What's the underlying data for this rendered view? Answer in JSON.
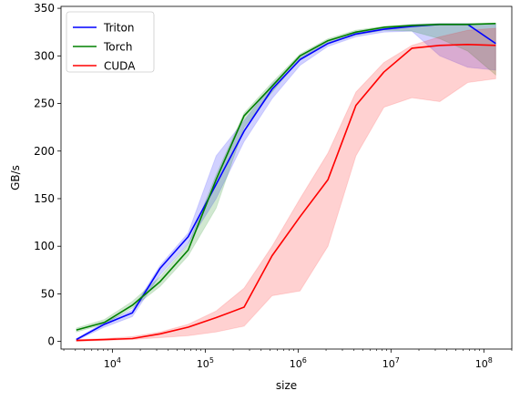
{
  "chart_data": {
    "type": "line",
    "title": "",
    "xlabel": "size",
    "ylabel": "GB/s",
    "xscale": "log",
    "xlim": [
      2800,
      200000000
    ],
    "ylim": [
      -8,
      352
    ],
    "xticks": [
      {
        "value": 10000,
        "base": "10",
        "exp": "4"
      },
      {
        "value": 100000,
        "base": "10",
        "exp": "5"
      },
      {
        "value": 1000000,
        "base": "10",
        "exp": "6"
      },
      {
        "value": 10000000,
        "base": "10",
        "exp": "7"
      },
      {
        "value": 100000000,
        "base": "10",
        "exp": "8"
      }
    ],
    "yticks": [
      "0",
      "50",
      "100",
      "150",
      "200",
      "250",
      "300",
      "350"
    ],
    "legend_position": "top-left",
    "x": [
      4096,
      8192,
      16384,
      32768,
      65536,
      131072,
      262144,
      524288,
      1048576,
      2097152,
      4194304,
      8388608,
      16777216,
      33554432,
      67108864,
      134217728
    ],
    "series": [
      {
        "name": "Triton",
        "color": "#0000ff",
        "values": [
          2,
          18,
          30,
          77,
          110,
          165,
          221,
          265,
          296,
          313,
          323,
          328,
          331,
          333,
          333,
          313
        ],
        "lower": [
          1,
          15,
          26,
          70,
          103,
          150,
          210,
          255,
          290,
          310,
          320,
          325,
          326,
          300,
          288,
          285
        ],
        "upper": [
          3,
          20,
          33,
          80,
          114,
          195,
          232,
          270,
          298,
          316,
          325,
          330,
          333,
          334,
          334,
          333
        ]
      },
      {
        "name": "Torch",
        "color": "#008000",
        "values": [
          12,
          20,
          38,
          63,
          96,
          170,
          237,
          268,
          300,
          316,
          325,
          330,
          332,
          333,
          333,
          334
        ],
        "lower": [
          10,
          18,
          35,
          58,
          90,
          140,
          225,
          262,
          297,
          313,
          322,
          327,
          326,
          318,
          305,
          280
        ],
        "upper": [
          14,
          23,
          42,
          68,
          102,
          175,
          240,
          272,
          302,
          318,
          327,
          331,
          333,
          334,
          334,
          334
        ]
      },
      {
        "name": "CUDA",
        "color": "#ff0000",
        "values": [
          1,
          2,
          3,
          8,
          15,
          25,
          36,
          90,
          131,
          170,
          248,
          283,
          308,
          311,
          312,
          311
        ],
        "lower": [
          0,
          1,
          2,
          4,
          6,
          10,
          16,
          48,
          53,
          100,
          195,
          246,
          256,
          252,
          272,
          276
        ],
        "upper": [
          2,
          3,
          5,
          10,
          18,
          32,
          56,
          100,
          150,
          198,
          262,
          293,
          311,
          320,
          327,
          329
        ]
      }
    ]
  }
}
